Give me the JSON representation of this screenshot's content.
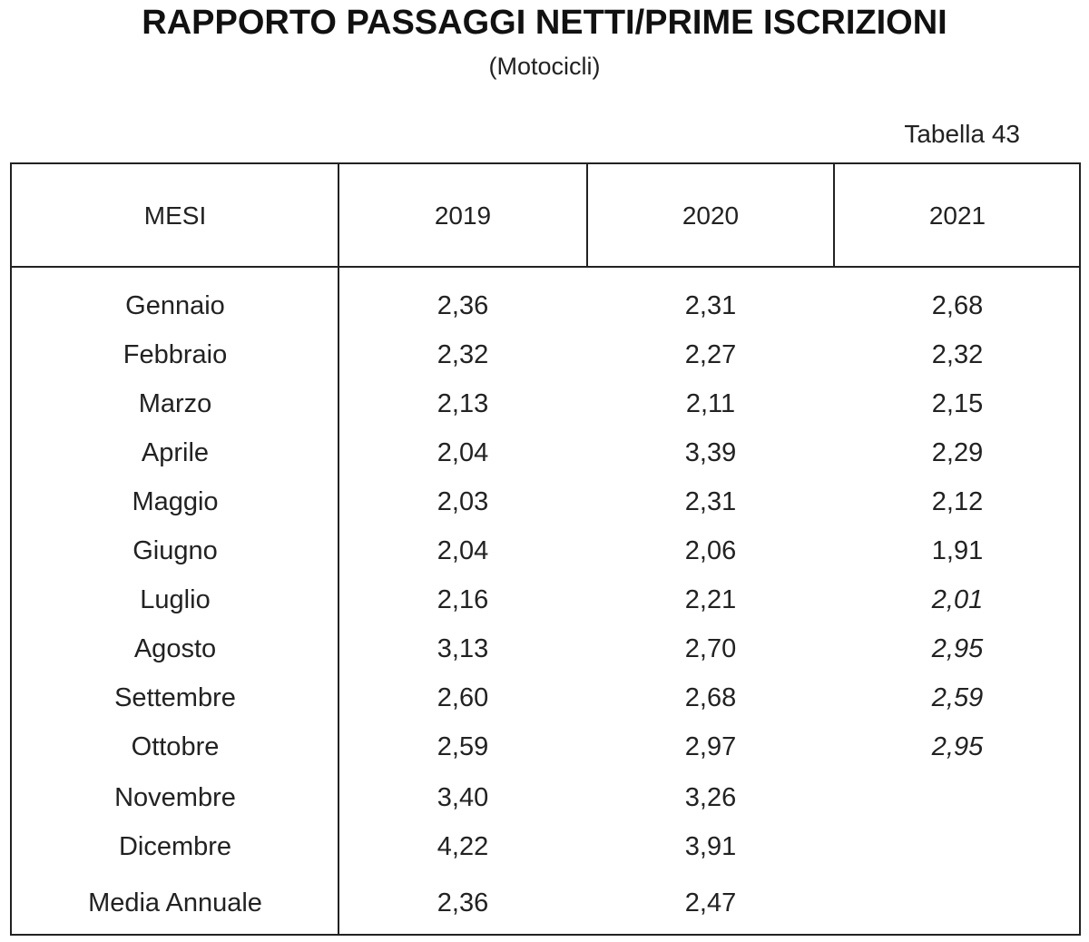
{
  "title": "RAPPORTO PASSAGGI NETTI/PRIME ISCRIZIONI",
  "subtitle": "(Motocicli)",
  "table_ref": "Tabella 43",
  "columns": [
    "MESI",
    "2019",
    "2020",
    "2021"
  ],
  "rows": [
    {
      "month": "Gennaio",
      "v2019": "2,36",
      "v2020": "2,31",
      "v2021": "2,68",
      "v2021_italic": false
    },
    {
      "month": "Febbraio",
      "v2019": "2,32",
      "v2020": "2,27",
      "v2021": "2,32",
      "v2021_italic": false
    },
    {
      "month": "Marzo",
      "v2019": "2,13",
      "v2020": "2,11",
      "v2021": "2,15",
      "v2021_italic": false
    },
    {
      "month": "Aprile",
      "v2019": "2,04",
      "v2020": "3,39",
      "v2021": "2,29",
      "v2021_italic": false
    },
    {
      "month": "Maggio",
      "v2019": "2,03",
      "v2020": "2,31",
      "v2021": "2,12",
      "v2021_italic": false
    },
    {
      "month": "Giugno",
      "v2019": "2,04",
      "v2020": "2,06",
      "v2021": "1,91",
      "v2021_italic": false
    },
    {
      "month": "Luglio",
      "v2019": "2,16",
      "v2020": "2,21",
      "v2021": "2,01",
      "v2021_italic": true
    },
    {
      "month": "Agosto",
      "v2019": "3,13",
      "v2020": "2,70",
      "v2021": "2,95",
      "v2021_italic": true
    },
    {
      "month": "Settembre",
      "v2019": "2,60",
      "v2020": "2,68",
      "v2021": "2,59",
      "v2021_italic": true
    },
    {
      "month": "Ottobre",
      "v2019": "2,59",
      "v2020": "2,97",
      "v2021": "2,95",
      "v2021_italic": true
    },
    {
      "month": "Novembre",
      "v2019": "3,40",
      "v2020": "3,26",
      "v2021": "",
      "v2021_italic": false
    },
    {
      "month": "Dicembre",
      "v2019": "4,22",
      "v2020": "3,91",
      "v2021": "",
      "v2021_italic": false
    },
    {
      "month": "Media Annuale",
      "v2019": "2,36",
      "v2020": "2,47",
      "v2021": "",
      "v2021_italic": false
    }
  ]
}
